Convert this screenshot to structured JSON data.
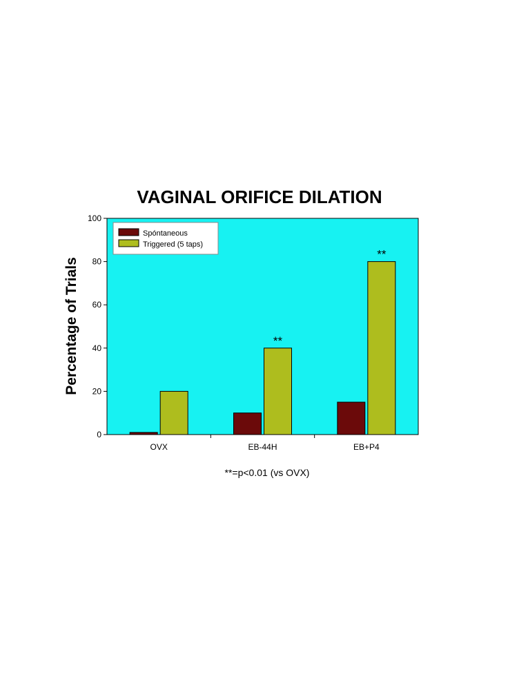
{
  "chart_data": {
    "type": "bar",
    "title": "VAGINAL ORIFICE DILATION",
    "ylabel": "Percentage of Trials",
    "xlabel": "",
    "categories": [
      "OVX",
      "EB-44H",
      "EB+P4"
    ],
    "series": [
      {
        "name": "Spóntaneous",
        "values": [
          1,
          10,
          15
        ],
        "color": "#6b0a0a"
      },
      {
        "name": "Triggered (5 taps)",
        "values": [
          20,
          40,
          80
        ],
        "color": "#aebd1e"
      }
    ],
    "ylim": [
      0,
      100
    ],
    "yticks": [
      "0",
      "20",
      "40",
      "60",
      "80",
      "100"
    ],
    "annotations": [
      {
        "category": "EB-44H",
        "series": "Triggered (5 taps)",
        "text": "**"
      },
      {
        "category": "EB+P4",
        "series": "Triggered (5 taps)",
        "text": "**"
      }
    ],
    "footnote": "**=p<0.01 (vs OVX)",
    "legend_position": "top-left",
    "plot_background": "#17f2f2",
    "grid": false
  }
}
